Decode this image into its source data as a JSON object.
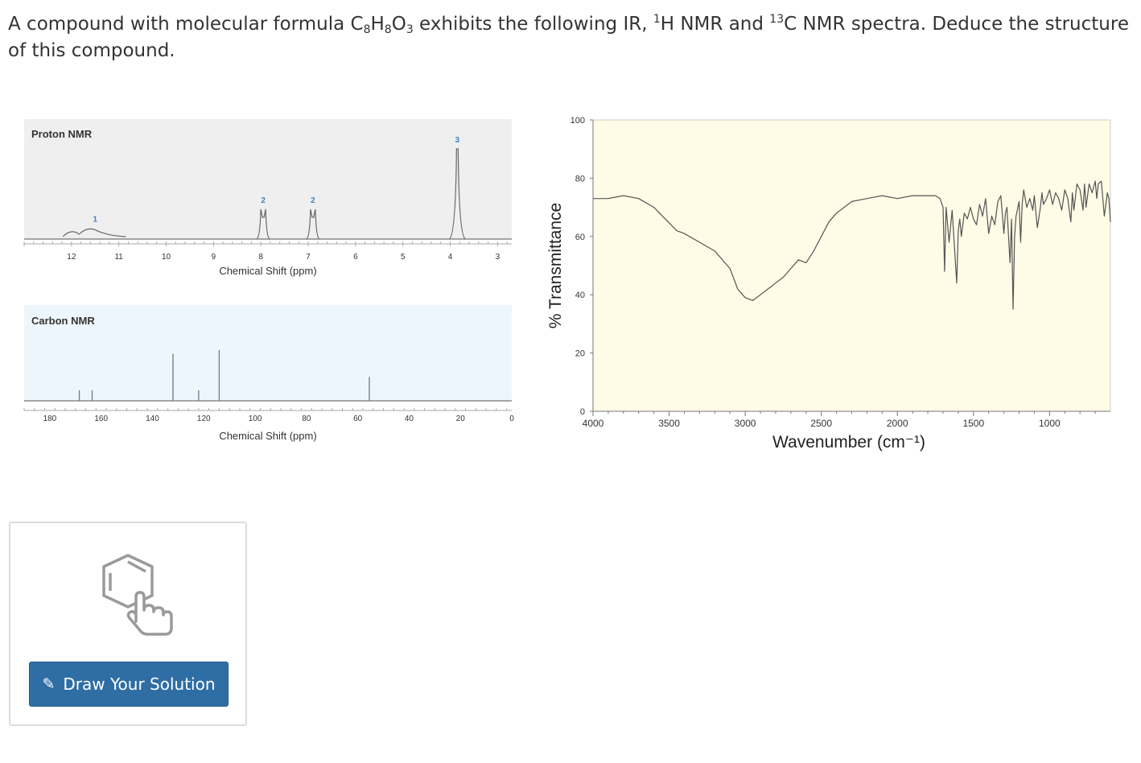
{
  "question": {
    "part1": "A compound with molecular formula C",
    "sub_c": "8",
    "part2": "H",
    "sub_h": "8",
    "part3": "O",
    "sub_o": "3",
    "part4": " exhibits the following IR, ",
    "sup_1": "1",
    "part5": "H NMR and ",
    "sup_13": "13",
    "part6": "C NMR spectra. Deduce the structure of this compound."
  },
  "chart_data": [
    {
      "type": "line",
      "title": "Proton NMR",
      "xlabel": "Chemical Shift (ppm)",
      "xlim": [
        13,
        2.7
      ],
      "x_reversed": true,
      "ticks": [
        "12",
        "11",
        "10",
        "9",
        "8",
        "7",
        "6",
        "5",
        "4",
        "3"
      ],
      "peaks": [
        {
          "x": 11.5,
          "height": 0.12,
          "integration": "1",
          "shape": "broad"
        },
        {
          "x": 7.95,
          "height": 0.33,
          "integration": "2",
          "shape": "doublet"
        },
        {
          "x": 6.9,
          "height": 0.33,
          "integration": "2",
          "shape": "doublet"
        },
        {
          "x": 3.85,
          "height": 1.0,
          "integration": "3",
          "shape": "singlet"
        }
      ],
      "background": "#efefef"
    },
    {
      "type": "line",
      "title": "Carbon NMR",
      "xlabel": "Chemical Shift (ppm)",
      "xlim": [
        190,
        0
      ],
      "x_reversed": true,
      "ticks": [
        "180",
        "160",
        "140",
        "120",
        "100",
        "80",
        "60",
        "40",
        "20",
        "0"
      ],
      "peaks": [
        {
          "x": 168.5,
          "height": 0.11
        },
        {
          "x": 163.5,
          "height": 0.11
        },
        {
          "x": 132,
          "height": 0.49
        },
        {
          "x": 122,
          "height": 0.11
        },
        {
          "x": 114,
          "height": 0.53
        },
        {
          "x": 55.5,
          "height": 0.25
        }
      ],
      "background": "#eef6fd"
    },
    {
      "type": "line",
      "title": "",
      "xlabel": "Wavenumber (cm⁻¹)",
      "ylabel": "% Transmittance",
      "xlim": [
        4000,
        600
      ],
      "ylim": [
        0,
        100
      ],
      "x_reversed": true,
      "xticks": [
        "4000",
        "3500",
        "3000",
        "2500",
        "2000",
        "1500",
        "1000"
      ],
      "yticks": [
        "100",
        "80",
        "60",
        "40",
        "20",
        "0"
      ],
      "background": "#fefbe6",
      "series": [
        {
          "x": [
            4000,
            3900,
            3800,
            3700,
            3600,
            3450,
            3400,
            3300,
            3200,
            3100,
            3050,
            3000,
            2950,
            2900,
            2850,
            2800,
            2750,
            2700,
            2650,
            2600,
            2550,
            2500,
            2450,
            2400,
            2300,
            2200,
            2100,
            2000,
            1900,
            1800,
            1750,
            1720,
            1700,
            1690,
            1680,
            1660,
            1640,
            1610,
            1600,
            1590,
            1580,
            1560,
            1540,
            1520,
            1500,
            1480,
            1460,
            1440,
            1420,
            1400,
            1380,
            1360,
            1340,
            1320,
            1300,
            1290,
            1280,
            1260,
            1250,
            1240,
            1230,
            1220,
            1200,
            1190,
            1180,
            1170,
            1150,
            1130,
            1110,
            1100,
            1080,
            1060,
            1050,
            1040,
            1020,
            1000,
            980,
            960,
            940,
            920,
            900,
            880,
            860,
            850,
            840,
            820,
            800,
            780,
            770,
            760,
            740,
            720,
            700,
            690,
            680,
            660,
            640,
            620,
            610,
            600
          ],
          "y": [
            73,
            73,
            74,
            73,
            70,
            62,
            61,
            58,
            55,
            49,
            42,
            39,
            38,
            40,
            42,
            44,
            46,
            49,
            52,
            51,
            55,
            60,
            65,
            68,
            72,
            73,
            74,
            73,
            74,
            74,
            74,
            73,
            70,
            48,
            70,
            58,
            69,
            44,
            62,
            66,
            60,
            68,
            66,
            70,
            66,
            64,
            71,
            67,
            73,
            61,
            67,
            64,
            72,
            74,
            61,
            68,
            70,
            51,
            66,
            35,
            60,
            67,
            72,
            58,
            71,
            76,
            70,
            73,
            69,
            74,
            63,
            70,
            75,
            71,
            73,
            76,
            71,
            75,
            73,
            69,
            76,
            73,
            65,
            75,
            69,
            78,
            76,
            69,
            78,
            70,
            78,
            75,
            79,
            73,
            78,
            79,
            67,
            75,
            73,
            65
          ]
        }
      ]
    }
  ],
  "solution": {
    "button_label": "Draw Your Solution",
    "pencil_icon": "✎"
  }
}
